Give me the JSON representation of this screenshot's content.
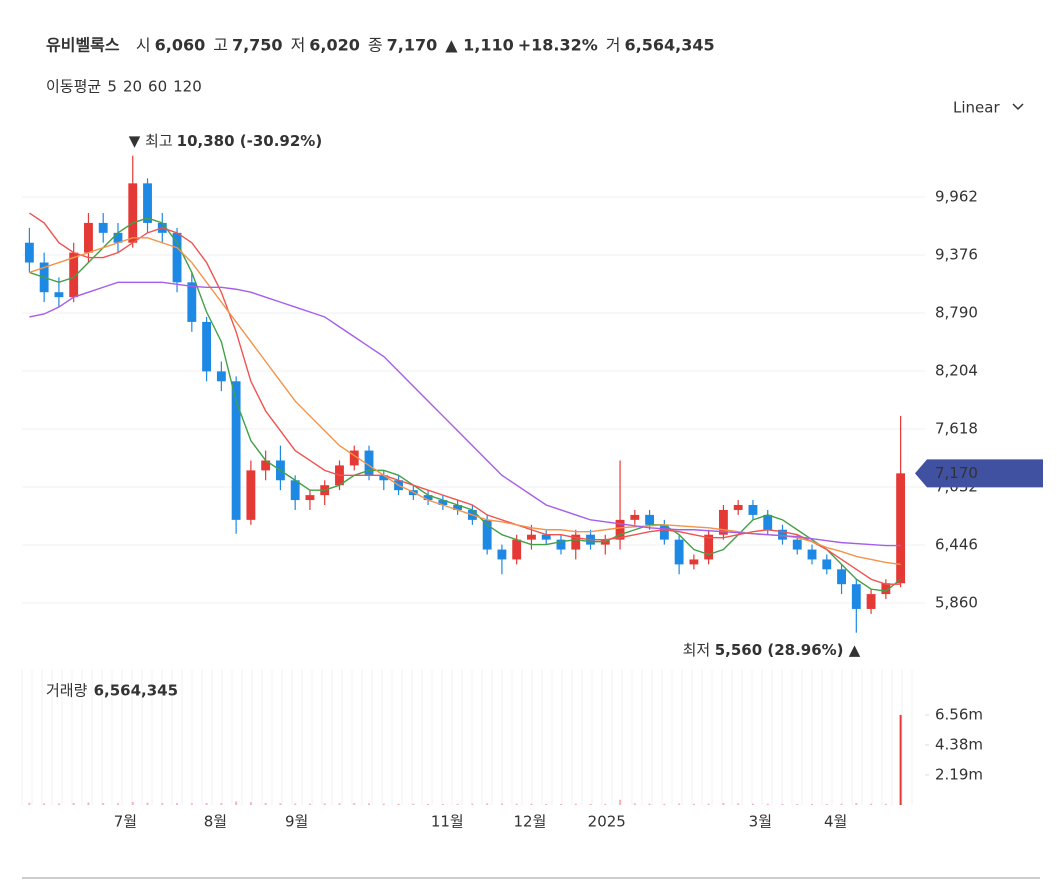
{
  "header": {
    "name": "유비벨록스",
    "items": [
      [
        "시",
        "6,060"
      ],
      [
        "고",
        "7,750"
      ],
      [
        "저",
        "6,020"
      ],
      [
        "종",
        "7,170"
      ]
    ],
    "change": "▲ 1,110",
    "pct": "+18.32%",
    "vol_key": "거",
    "vol": "6,564,345",
    "ma_title": "이동평균",
    "scale": "Linear"
  },
  "chart_data": [
    {
      "type": "candlestick",
      "up_color": "#e53935",
      "down_color": "#1e88e5",
      "open": [
        9500,
        9300,
        9000,
        8950,
        9400,
        9700,
        9600,
        9500,
        10100,
        9700,
        9600,
        9100,
        8700,
        8200,
        8100,
        6700,
        7200,
        7300,
        7100,
        6900,
        6950,
        7050,
        7250,
        7400,
        7150,
        7100,
        7000,
        6950,
        6900,
        6850,
        6800,
        6700,
        6400,
        6300,
        6500,
        6550,
        6500,
        6400,
        6550,
        6450,
        6500,
        6700,
        6750,
        6650,
        6500,
        6250,
        6300,
        6550,
        6800,
        6850,
        6750,
        6600,
        6500,
        6400,
        6300,
        6200,
        6050,
        5800,
        5950,
        6060
      ],
      "high": [
        9650,
        9400,
        9150,
        9500,
        9800,
        9800,
        9700,
        10380,
        10150,
        9800,
        9650,
        9200,
        8750,
        8300,
        8150,
        7300,
        7400,
        7450,
        7150,
        7000,
        7100,
        7300,
        7450,
        7450,
        7200,
        7150,
        7050,
        7000,
        6950,
        6900,
        6850,
        6750,
        6450,
        6550,
        6650,
        6600,
        6550,
        6600,
        6600,
        6550,
        7300,
        6800,
        6800,
        6700,
        6550,
        6350,
        6600,
        6850,
        6900,
        6900,
        6800,
        6650,
        6550,
        6450,
        6350,
        6250,
        6100,
        6000,
        6100,
        7750
      ],
      "low": [
        9200,
        8900,
        8850,
        8900,
        9300,
        9500,
        9400,
        9450,
        9600,
        9500,
        9000,
        8600,
        8100,
        8000,
        6560,
        6650,
        7100,
        7000,
        6800,
        6800,
        6850,
        7000,
        7200,
        7100,
        7000,
        6950,
        6900,
        6850,
        6800,
        6750,
        6650,
        6350,
        6150,
        6250,
        6400,
        6450,
        6350,
        6300,
        6400,
        6350,
        6400,
        6650,
        6600,
        6450,
        6150,
        6200,
        6250,
        6500,
        6750,
        6700,
        6550,
        6450,
        6350,
        6250,
        6150,
        5950,
        5560,
        5750,
        5900,
        6020
      ],
      "close": [
        9300,
        9000,
        8950,
        9400,
        9700,
        9600,
        9500,
        10100,
        9700,
        9600,
        9100,
        8700,
        8200,
        8100,
        6700,
        7200,
        7300,
        7100,
        6900,
        6950,
        7050,
        7250,
        7400,
        7150,
        7100,
        7000,
        6950,
        6900,
        6850,
        6800,
        6700,
        6400,
        6300,
        6500,
        6550,
        6500,
        6400,
        6550,
        6450,
        6500,
        6700,
        6750,
        6650,
        6500,
        6250,
        6300,
        6550,
        6800,
        6850,
        6750,
        6600,
        6500,
        6400,
        6300,
        6200,
        6050,
        5800,
        5950,
        6060,
        7170
      ],
      "series": [
        {
          "name": "5",
          "color": "#43a047",
          "values": [
            9200,
            9150,
            9100,
            9150,
            9300,
            9450,
            9600,
            9700,
            9750,
            9700,
            9500,
            9200,
            8800,
            8500,
            7900,
            7500,
            7300,
            7200,
            7100,
            7000,
            7000,
            7050,
            7150,
            7200,
            7200,
            7150,
            7050,
            6950,
            6900,
            6850,
            6800,
            6650,
            6550,
            6500,
            6450,
            6450,
            6480,
            6500,
            6480,
            6480,
            6550,
            6600,
            6650,
            6650,
            6550,
            6400,
            6350,
            6400,
            6550,
            6700,
            6750,
            6700,
            6600,
            6500,
            6400,
            6250,
            6100,
            6000,
            5980,
            6100
          ]
        },
        {
          "name": "20",
          "color": "#ef5350",
          "values": [
            9800,
            9700,
            9500,
            9400,
            9350,
            9350,
            9400,
            9500,
            9600,
            9650,
            9600,
            9500,
            9300,
            9000,
            8600,
            8100,
            7800,
            7600,
            7400,
            7300,
            7200,
            7150,
            7150,
            7150,
            7150,
            7100,
            7050,
            7000,
            6950,
            6900,
            6850,
            6750,
            6700,
            6650,
            6600,
            6550,
            6550,
            6520,
            6500,
            6500,
            6520,
            6550,
            6580,
            6600,
            6580,
            6550,
            6520,
            6520,
            6550,
            6580,
            6600,
            6580,
            6550,
            6480,
            6400,
            6300,
            6200,
            6100,
            6050,
            6050
          ]
        },
        {
          "name": "60",
          "color": "#f4934a",
          "values": [
            9200,
            9250,
            9300,
            9350,
            9400,
            9450,
            9500,
            9550,
            9550,
            9500,
            9450,
            9300,
            9100,
            8900,
            8700,
            8500,
            8300,
            8100,
            7900,
            7750,
            7600,
            7450,
            7350,
            7250,
            7150,
            7050,
            6980,
            6900,
            6850,
            6800,
            6750,
            6700,
            6680,
            6650,
            6620,
            6600,
            6600,
            6580,
            6580,
            6600,
            6620,
            6630,
            6640,
            6650,
            6640,
            6630,
            6620,
            6600,
            6580,
            6560,
            6550,
            6540,
            6520,
            6480,
            6420,
            6380,
            6330,
            6300,
            6270,
            6250
          ]
        },
        {
          "name": "120",
          "color": "#a55eea",
          "values": [
            8750,
            8780,
            8850,
            8950,
            9000,
            9050,
            9100,
            9100,
            9100,
            9100,
            9080,
            9060,
            9050,
            9050,
            9030,
            9000,
            8950,
            8900,
            8850,
            8800,
            8750,
            8650,
            8550,
            8450,
            8350,
            8200,
            8050,
            7900,
            7750,
            7600,
            7450,
            7300,
            7150,
            7050,
            6950,
            6850,
            6800,
            6750,
            6700,
            6680,
            6660,
            6640,
            6620,
            6610,
            6600,
            6600,
            6590,
            6580,
            6570,
            6560,
            6550,
            6540,
            6530,
            6510,
            6490,
            6470,
            6460,
            6450,
            6440,
            6440
          ]
        }
      ],
      "ylim": [
        5284,
        10639
      ],
      "yticks": [
        {
          "value": 5860,
          "label": "5,860"
        },
        {
          "value": 6446,
          "label": "6,446"
        },
        {
          "value": 7032,
          "label": "7,032"
        },
        {
          "value": 7618,
          "label": "7,618"
        },
        {
          "value": 8204,
          "label": "8,204"
        },
        {
          "value": 8790,
          "label": "8,790"
        },
        {
          "value": 9376,
          "label": "9,376"
        },
        {
          "value": 9962,
          "label": "9,962"
        }
      ],
      "xlim": [
        0,
        60
      ],
      "xticks": [
        {
          "value": 7,
          "label": "7월"
        },
        {
          "value": 13.1,
          "label": "8월"
        },
        {
          "value": 18.6,
          "label": "9월"
        },
        {
          "value": 28.8,
          "label": "11월"
        },
        {
          "value": 34.4,
          "label": "12월"
        },
        {
          "value": 39.6,
          "label": "2025"
        },
        {
          "value": 50,
          "label": "3월"
        },
        {
          "value": 55.1,
          "label": "4월"
        }
      ],
      "high_key": "▼ 최고",
      "high_text": "10,380 (-30.92%)",
      "low_key": "최저",
      "low_text": "5,560 (28.96%) ▲",
      "last_label": "7,170",
      "grid": true
    },
    {
      "type": "bar",
      "title": "거래량",
      "value_label": "6,564,345",
      "color": "#f5b5b5",
      "last_color": "#e53935",
      "values": [
        160000,
        120000,
        110000,
        150000,
        180000,
        140000,
        130000,
        220000,
        170000,
        140000,
        130000,
        120000,
        150000,
        140000,
        260000,
        200000,
        150000,
        120000,
        110000,
        100000,
        110000,
        130000,
        150000,
        120000,
        100000,
        90000,
        90000,
        80000,
        80000,
        80000,
        90000,
        120000,
        110000,
        100000,
        90000,
        80000,
        80000,
        90000,
        80000,
        90000,
        380000,
        120000,
        100000,
        90000,
        110000,
        90000,
        100000,
        140000,
        120000,
        100000,
        90000,
        80000,
        80000,
        80000,
        80000,
        90000,
        150000,
        100000,
        90000,
        6564345
      ],
      "ylim": [
        0,
        9840000
      ],
      "yticks": [
        {
          "value": 2190000,
          "label": "2.19m"
        },
        {
          "value": 4380000,
          "label": "4.38m"
        },
        {
          "value": 6560000,
          "label": "6.56m"
        }
      ]
    }
  ]
}
